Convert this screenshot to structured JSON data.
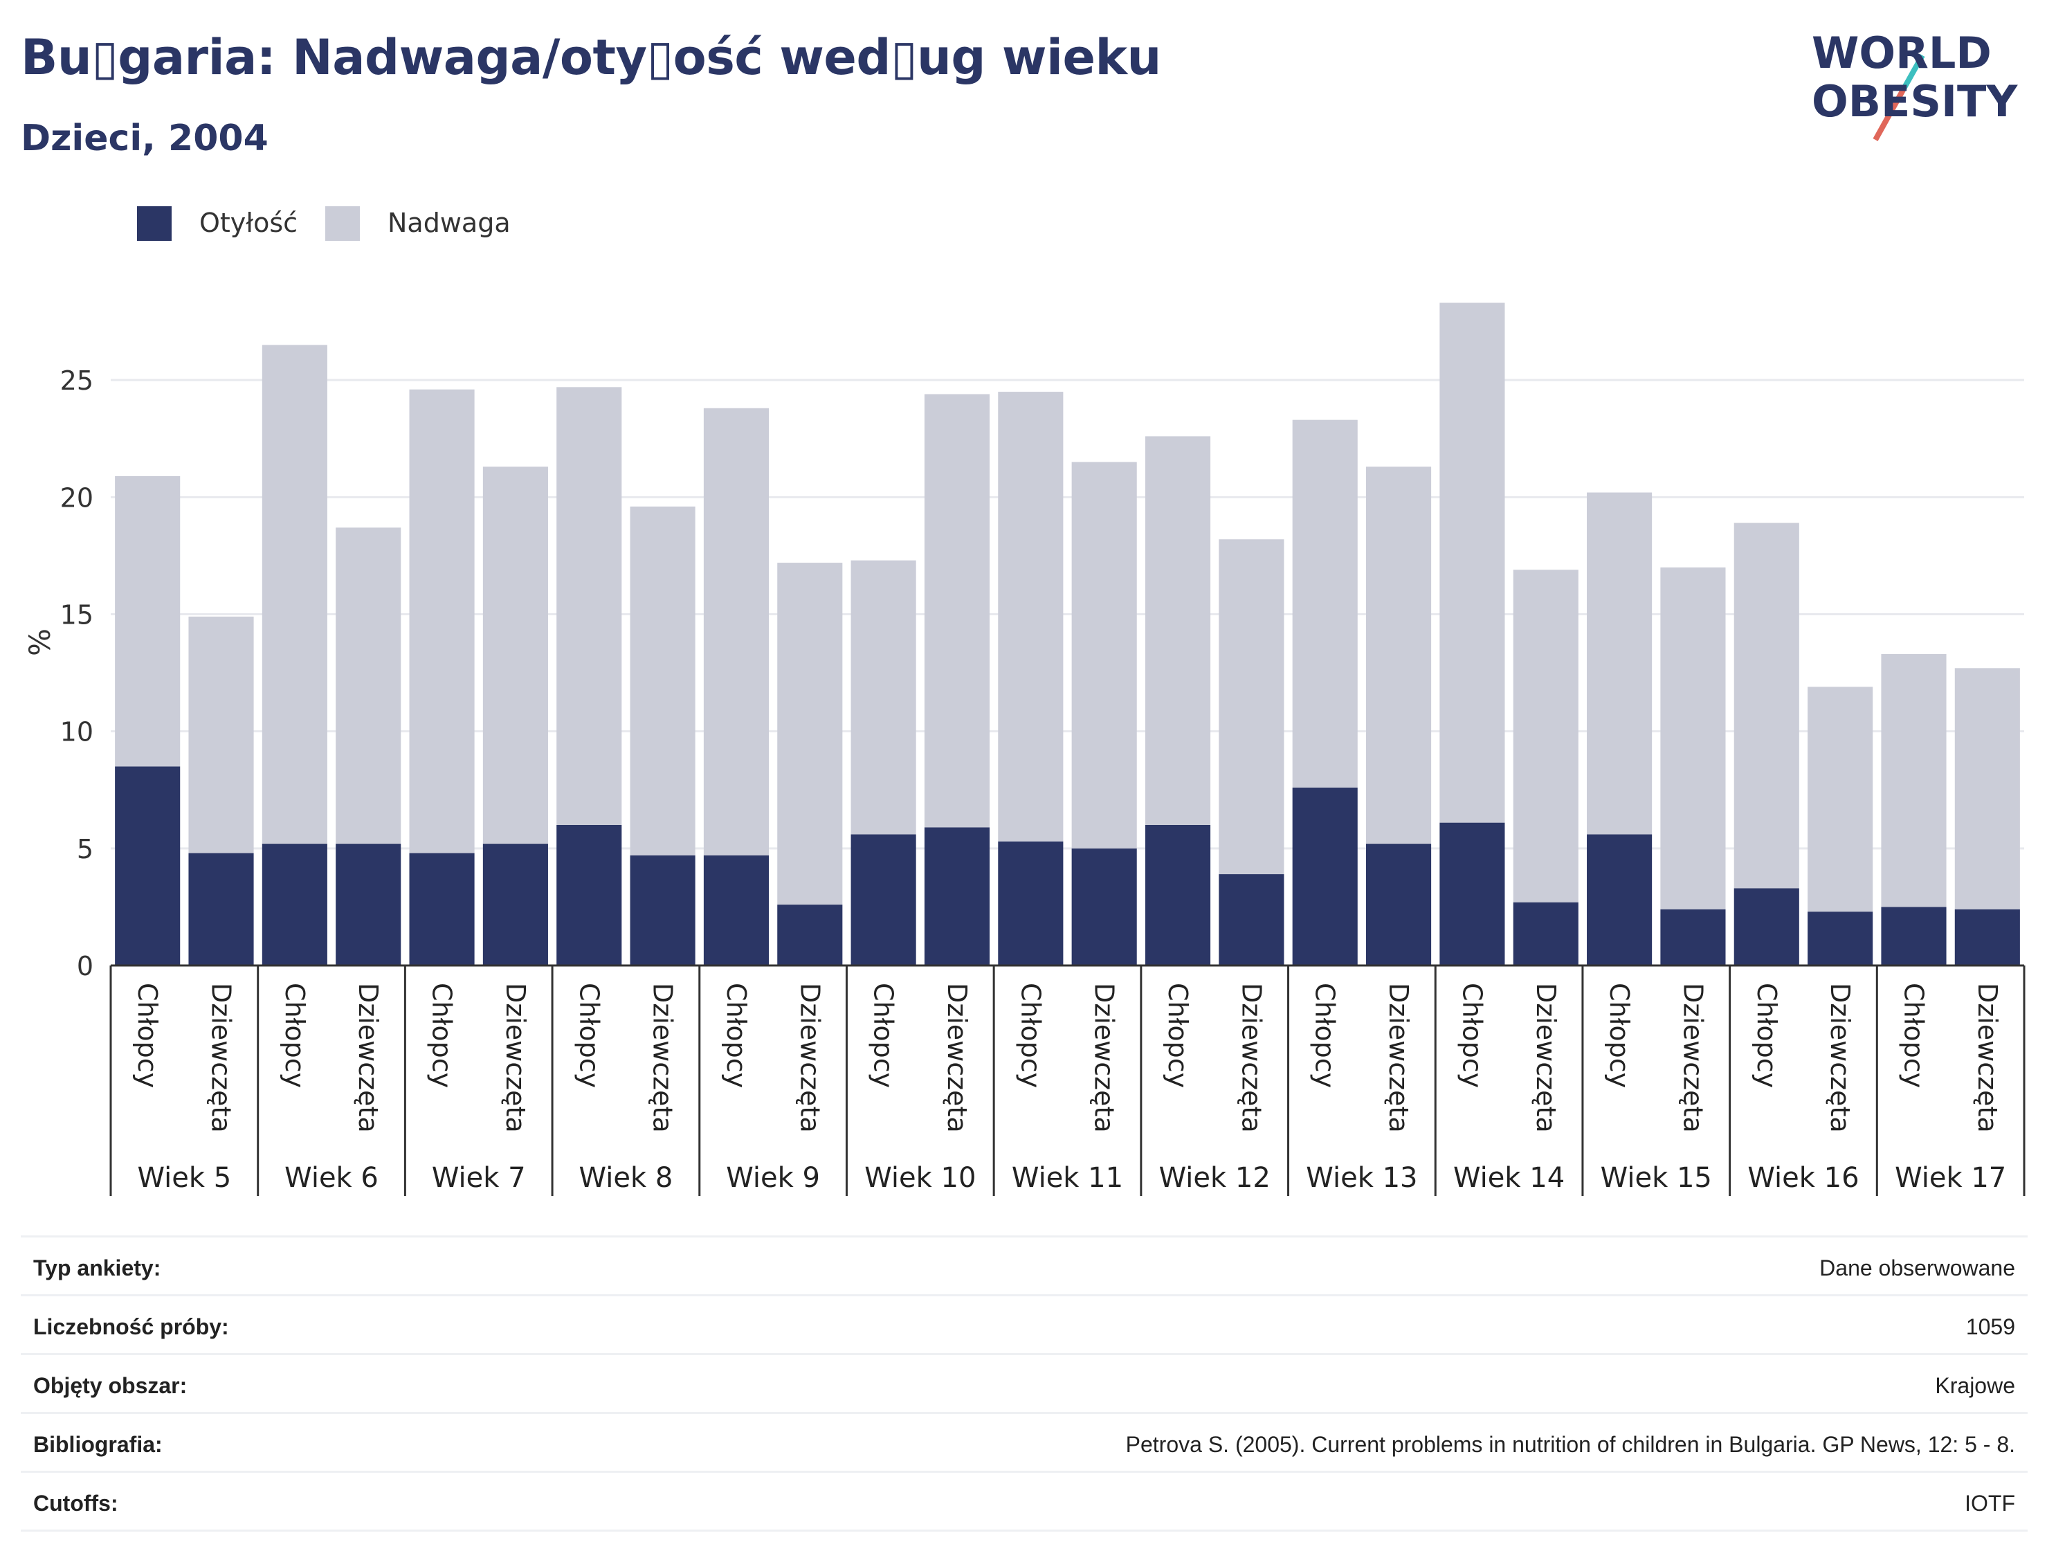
{
  "title": "Bu▯garia: Nadwaga/oty▯ość wed▯ug wieku",
  "subtitle": "Dzieci, 2004",
  "logo": {
    "line1": "WORLD",
    "line2": "OBESITY",
    "accent_colors": [
      "#3dbfbf",
      "#e0675a"
    ]
  },
  "legend": [
    {
      "label": "Otyłość",
      "color": "#2b3665"
    },
    {
      "label": "Nadwaga",
      "color": "#cbcdd8"
    }
  ],
  "chart_data": {
    "type": "bar",
    "stacked": true,
    "ylabel": "%",
    "ylim": [
      0,
      30
    ],
    "yticks": [
      0,
      5,
      10,
      15,
      20,
      25
    ],
    "grid": true,
    "legend_position": "top-left",
    "groups": [
      "Wiek 5",
      "Wiek 6",
      "Wiek 7",
      "Wiek 8",
      "Wiek 9",
      "Wiek 10",
      "Wiek 11",
      "Wiek 12",
      "Wiek 13",
      "Wiek 14",
      "Wiek 15",
      "Wiek 16",
      "Wiek 17"
    ],
    "subcategories": [
      "Chłopcy",
      "Dziewczęta"
    ],
    "series": [
      {
        "name": "Otyłość",
        "color": "#2b3665",
        "values": [
          8.5,
          4.8,
          5.2,
          5.2,
          4.8,
          5.2,
          6.0,
          4.7,
          4.7,
          2.6,
          5.6,
          5.9,
          5.3,
          5.0,
          6.0,
          3.9,
          7.6,
          5.2,
          6.1,
          2.7,
          5.6,
          2.4,
          3.3,
          2.3,
          2.5,
          2.4
        ]
      },
      {
        "name": "Nadwaga",
        "color": "#cbcdd8",
        "values": [
          12.4,
          10.1,
          21.3,
          13.5,
          19.8,
          16.1,
          18.7,
          14.9,
          19.1,
          14.6,
          11.7,
          18.5,
          19.2,
          16.5,
          16.6,
          14.3,
          15.7,
          16.1,
          22.2,
          14.2,
          14.6,
          14.6,
          15.6,
          9.6,
          10.8,
          10.3
        ]
      }
    ]
  },
  "info": [
    {
      "label": "Typ ankiety:",
      "value": "Dane obserwowane"
    },
    {
      "label": "Liczebność próby:",
      "value": "1059"
    },
    {
      "label": "Objęty obszar:",
      "value": "Krajowe"
    },
    {
      "label": "Bibliografia:",
      "value": "Petrova S. (2005). Current problems in nutrition of children in Bulgaria. GP News, 12: 5 - 8."
    },
    {
      "label": "Cutoffs:",
      "value": "IOTF"
    }
  ]
}
